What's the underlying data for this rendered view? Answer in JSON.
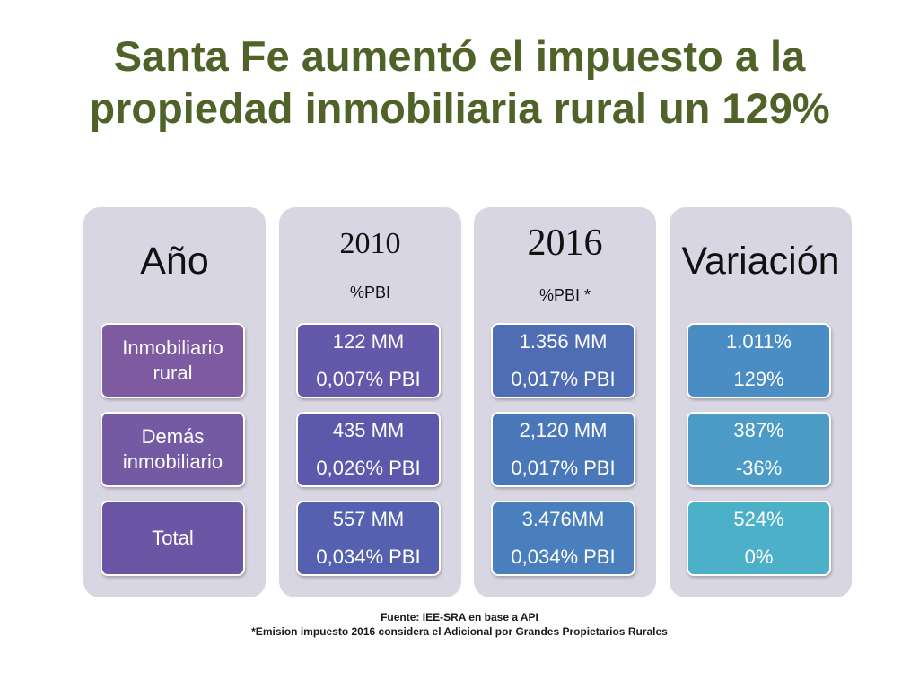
{
  "title": "Santa Fe aumentó el impuesto a la propiedad inmobiliaria rural un 129%",
  "columns": [
    {
      "heading": "Año",
      "subheading": "",
      "cells": [
        {
          "line1": "Inmobiliario rural",
          "line2": ""
        },
        {
          "line1": "Demás inmobiliario",
          "line2": ""
        },
        {
          "line1": "Total",
          "line2": ""
        }
      ]
    },
    {
      "heading": "2010",
      "subheading": "%PBI",
      "cells": [
        {
          "line1": "122 MM",
          "line2": "0,007% PBI"
        },
        {
          "line1": "435 MM",
          "line2": "0,026% PBI"
        },
        {
          "line1": "557 MM",
          "line2": "0,034% PBI"
        }
      ]
    },
    {
      "heading": "2016",
      "subheading": "%PBI *",
      "cells": [
        {
          "line1": "1.356 MM",
          "line2": "0,017% PBI"
        },
        {
          "line1": "2,120 MM",
          "line2": "0,017% PBI"
        },
        {
          "line1": "3.476MM",
          "line2": "0,034% PBI"
        }
      ]
    },
    {
      "heading": "Variación",
      "subheading": "",
      "cells": [
        {
          "line1": "1.011%",
          "line2": "129%"
        },
        {
          "line1": "387%",
          "line2": "-36%"
        },
        {
          "line1": "524%",
          "line2": "0%"
        }
      ]
    }
  ],
  "footer": {
    "source": "Fuente: IEE-SRA en base a API",
    "note": "*Emision impuesto 2016 considera el Adicional por Grandes Propietarios Rurales"
  },
  "colors": {
    "title": "#4f6228",
    "column_bg": "#d9d6e3",
    "year_cells": [
      "#7e5ba0",
      "#7459a3",
      "#6b56a5"
    ],
    "y2010_cells": [
      "#6458aa",
      "#5c58ab",
      "#5561b0"
    ],
    "y2016_cells": [
      "#4f6db5",
      "#4a76ba",
      "#4a7fbd"
    ],
    "variation_cells": [
      "#4a8cc4",
      "#4b9bc6",
      "#4bb0c8"
    ]
  }
}
